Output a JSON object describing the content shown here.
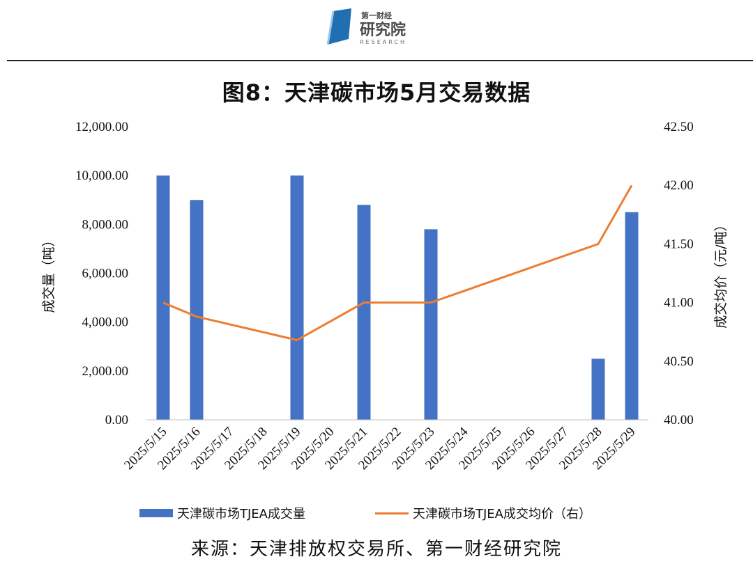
{
  "header": {
    "logo_top": "第一财经",
    "logo_main": "研究院",
    "logo_sub": "RESEARCH"
  },
  "colors": {
    "bar": "#4472C4",
    "line": "#ED7D31"
  },
  "chart_data": {
    "type": "bar",
    "title": "图8：天津碳市场5月交易数据",
    "categories": [
      "2025/5/15",
      "2025/5/16",
      "2025/5/17",
      "2025/5/18",
      "2025/5/19",
      "2025/5/20",
      "2025/5/21",
      "2025/5/22",
      "2025/5/23",
      "2025/5/24",
      "2025/5/25",
      "2025/5/26",
      "2025/5/27",
      "2025/5/28",
      "2025/5/29"
    ],
    "series": [
      {
        "name": "天津碳市场TJEA成交量",
        "type": "bar",
        "axis": "left",
        "values": [
          10000,
          9000,
          0,
          0,
          10000,
          0,
          8800,
          0,
          7800,
          0,
          0,
          0,
          0,
          2500,
          8500
        ]
      },
      {
        "name": "天津碳市场TJEA成交均价（右）",
        "type": "line",
        "axis": "right",
        "points": [
          {
            "x": "2025/5/15",
            "y": 41.0
          },
          {
            "x": "2025/5/16",
            "y": 40.88
          },
          {
            "x": "2025/5/19",
            "y": 40.68
          },
          {
            "x": "2025/5/21",
            "y": 41.0
          },
          {
            "x": "2025/5/23",
            "y": 41.0
          },
          {
            "x": "2025/5/28",
            "y": 41.5
          },
          {
            "x": "2025/5/29",
            "y": 42.0
          }
        ]
      }
    ],
    "ylabel": "成交量（吨）",
    "y2label": "成交均价（元/吨）",
    "ylim": [
      0,
      12000
    ],
    "y2lim": [
      40.0,
      42.5
    ],
    "yticks": [
      "0.00",
      "2,000.00",
      "4,000.00",
      "6,000.00",
      "8,000.00",
      "10,000.00",
      "12,000.00"
    ],
    "y2ticks": [
      "40.00",
      "40.50",
      "41.00",
      "41.50",
      "42.00",
      "42.50"
    ],
    "grid": false,
    "legend_position": "bottom"
  },
  "footer": {
    "source": "来源：天津排放权交易所、第一财经研究院"
  }
}
